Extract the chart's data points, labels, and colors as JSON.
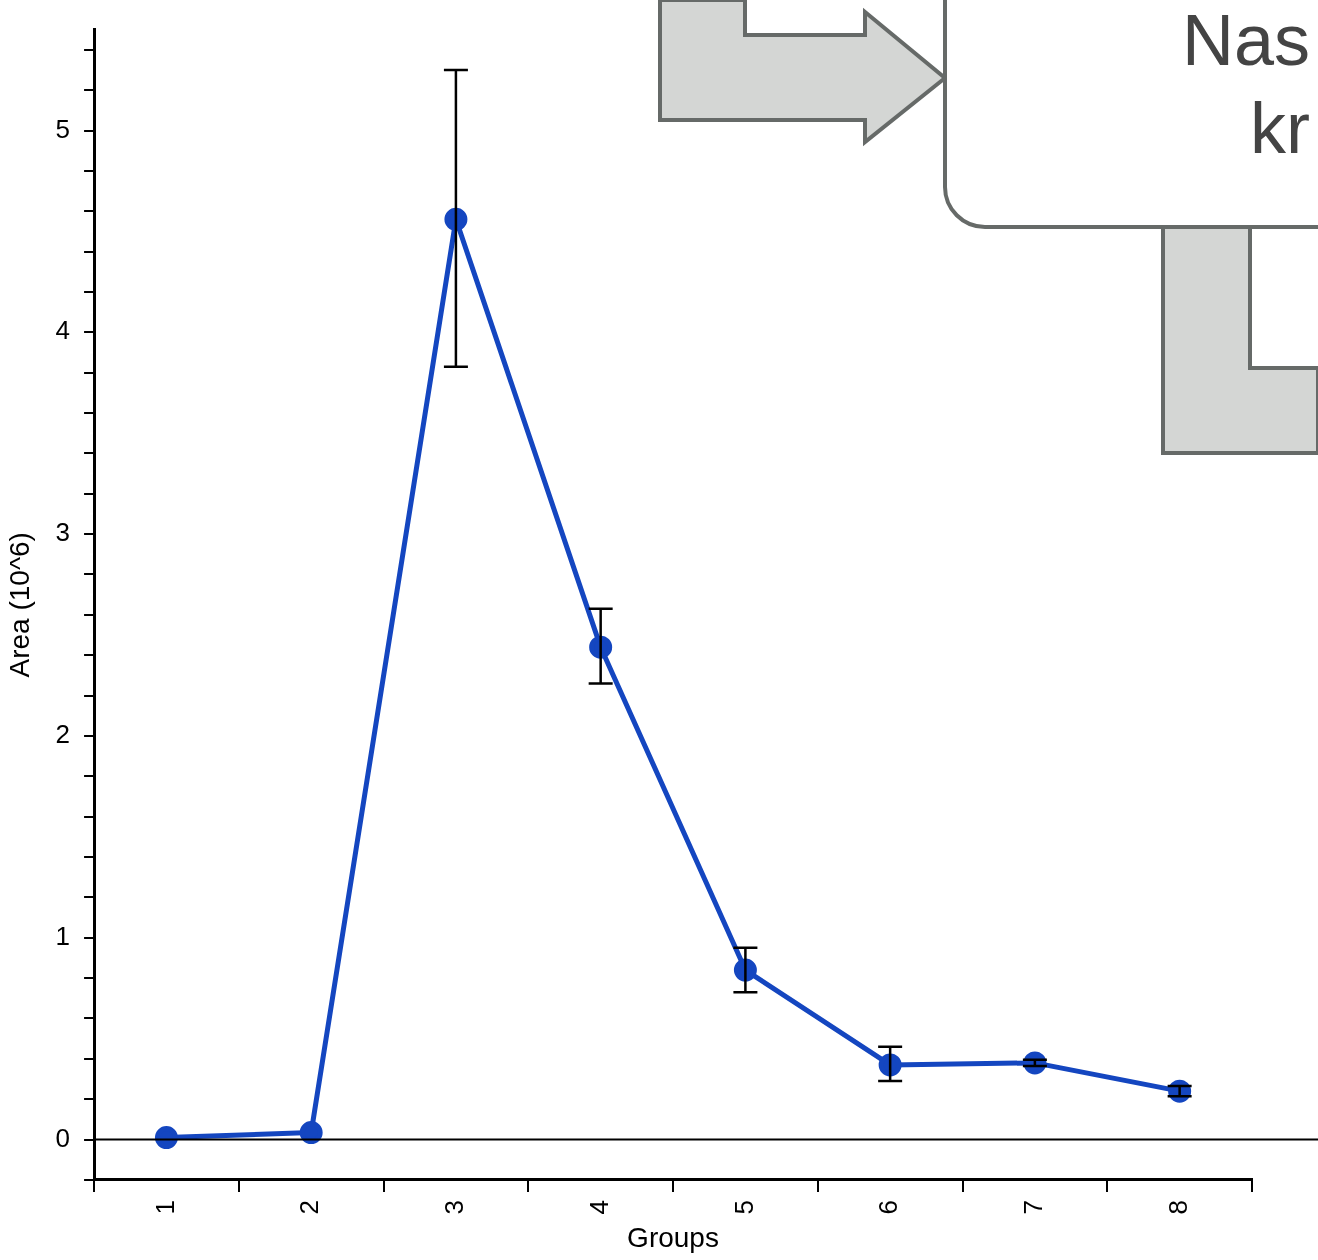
{
  "chart_data": {
    "type": "line",
    "xlabel": "Groups",
    "ylabel": "Area (10^6)",
    "categories": [
      "1",
      "2",
      "3",
      "4",
      "5",
      "6",
      "7",
      "8"
    ],
    "series": [
      {
        "color": "#1446c0",
        "values": [
          0.01,
          0.035,
          4.56,
          2.44,
          0.84,
          0.37,
          0.38,
          0.24
        ],
        "errors": [
          null,
          null,
          [
            3.83,
            5.3
          ],
          [
            2.26,
            2.63
          ],
          [
            0.73,
            0.95
          ],
          [
            0.29,
            0.46
          ],
          [
            0.365,
            0.395
          ],
          [
            0.215,
            0.265
          ]
        ]
      }
    ],
    "ylim": [
      -0.2,
      5.5
    ],
    "yticks": [
      {
        "value": -0.2,
        "label": null
      },
      0,
      {
        "value": 0.2,
        "label": null
      },
      {
        "value": 0.4,
        "label": null
      },
      {
        "value": 0.6,
        "label": null
      },
      {
        "value": 0.8,
        "label": null
      },
      1,
      {
        "value": 1.2,
        "label": null
      },
      {
        "value": 1.4,
        "label": null
      },
      {
        "value": 1.6,
        "label": null
      },
      {
        "value": 1.8,
        "label": null
      },
      2,
      {
        "value": 2.2,
        "label": null
      },
      {
        "value": 2.4,
        "label": null
      },
      {
        "value": 2.6,
        "label": null
      },
      {
        "value": 2.8,
        "label": null
      },
      3,
      {
        "value": 3.2,
        "label": null
      },
      {
        "value": 3.4,
        "label": null
      },
      {
        "value": 3.6,
        "label": null
      },
      {
        "value": 3.8,
        "label": null
      },
      4,
      {
        "value": 4.2,
        "label": null
      },
      {
        "value": 4.4,
        "label": null
      },
      {
        "value": 4.6,
        "label": null
      },
      {
        "value": 4.8,
        "label": null
      },
      5,
      {
        "value": 5.2,
        "label": null
      },
      {
        "value": 5.4,
        "label": null
      }
    ],
    "ref_lines": [
      {
        "axis": "y",
        "value": 0,
        "color": "#000000"
      }
    ],
    "annotations": [
      "Nas",
      "kr"
    ],
    "grid": false,
    "legend": false,
    "marker": "circle",
    "line_style": "solid"
  }
}
